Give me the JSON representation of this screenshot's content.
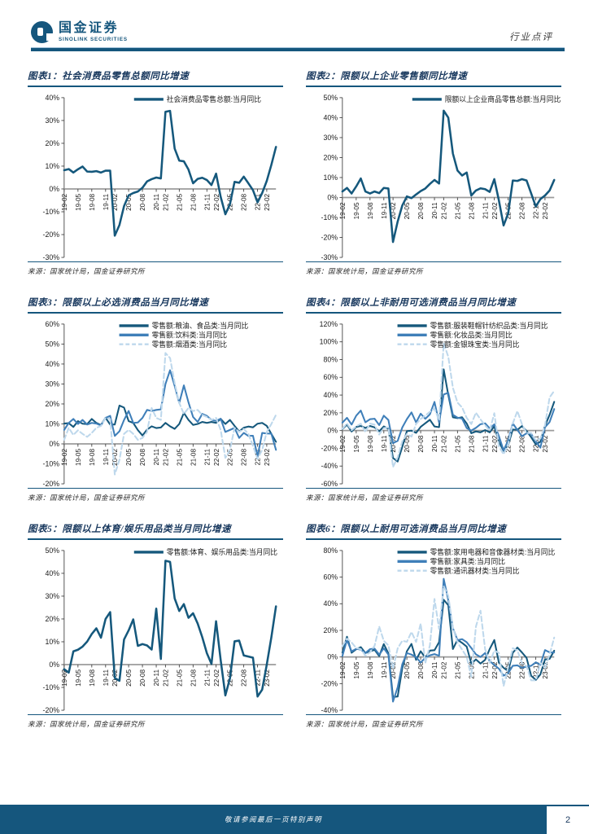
{
  "header": {
    "brand_cn": "国金证券",
    "brand_en": "SINOLINK SECURITIES",
    "doc_type": "行业点评"
  },
  "footer": {
    "disclaimer": "敬请参阅最后一页特别声明",
    "page_number": "2"
  },
  "colors": {
    "dark": "#15587c",
    "medium": "#3f7fb9",
    "light": "#bed8ec",
    "axis": "#404040",
    "zero": "#9b9b9b",
    "accent": "#15567d"
  },
  "x_tick_labels": [
    "19-02",
    "19-05",
    "19-08",
    "19-11",
    "20-02",
    "20-05",
    "20-08",
    "20-11",
    "21-02",
    "21-05",
    "21-08",
    "21-11",
    "22-02",
    "22-05",
    "22-08",
    "22-11",
    "23-02"
  ],
  "months": [
    "19-02",
    "19-03",
    "19-04",
    "19-05",
    "19-06",
    "19-07",
    "19-08",
    "19-09",
    "19-10",
    "19-11",
    "19-12",
    "20-02",
    "20-03",
    "20-04",
    "20-05",
    "20-06",
    "20-07",
    "20-08",
    "20-09",
    "20-10",
    "20-11",
    "20-12",
    "21-02",
    "21-03",
    "21-04",
    "21-05",
    "21-06",
    "21-07",
    "21-08",
    "21-09",
    "21-10",
    "21-11",
    "21-12",
    "22-02",
    "22-03",
    "22-04",
    "22-05",
    "22-06",
    "22-07",
    "22-08",
    "22-09",
    "22-10",
    "22-11",
    "22-12",
    "23-02",
    "23-03",
    "23-04"
  ],
  "charts": [
    {
      "title": "图表1：社会消费品零售总额同比增速",
      "source": "来源：国家统计局，国金证券研究所",
      "chart_data": {
        "type": "line",
        "ylim": [
          -30,
          40
        ],
        "ystep": 10,
        "grid": false,
        "legend_position": "top-center",
        "series": [
          {
            "name": "社会消费品零售总额:当月同比",
            "color": "dark",
            "dash": false,
            "values": [
              8.2,
              8.7,
              7.2,
              8.6,
              9.8,
              7.6,
              7.5,
              7.8,
              7.2,
              8.0,
              8.0,
              -20.5,
              -15.8,
              -7.5,
              -2.8,
              -1.8,
              -1.1,
              0.5,
              3.3,
              4.3,
              5.0,
              4.6,
              33.8,
              34.2,
              17.7,
              12.4,
              12.1,
              8.5,
              2.5,
              4.4,
              4.9,
              3.9,
              1.7,
              6.7,
              -3.5,
              -11.1,
              -6.7,
              3.1,
              2.7,
              5.4,
              2.5,
              -0.5,
              -5.9,
              -1.8,
              3.5,
              10.6,
              18.4
            ]
          }
        ]
      }
    },
    {
      "title": "图表2：限额以上企业零售额同比增速",
      "source": "来源：国家统计局，国金证券研究所",
      "chart_data": {
        "type": "line",
        "ylim": [
          -30,
          50
        ],
        "ystep": 10,
        "grid": false,
        "legend_position": "top-center",
        "series": [
          {
            "name": "限额以上企业商品零售总额:当月同比",
            "color": "dark",
            "dash": false,
            "values": [
              3.0,
              4.8,
              2.0,
              5.5,
              9.5,
              3.0,
              2.0,
              3.0,
              2.2,
              4.8,
              4.5,
              -22.3,
              -12.0,
              -4.0,
              0.5,
              -0.3,
              1.5,
              3.2,
              4.5,
              6.8,
              8.8,
              7.0,
              43.5,
              40.0,
              22.0,
              13.5,
              11.0,
              12.5,
              1.0,
              3.5,
              4.6,
              4.2,
              2.8,
              9.2,
              -1.5,
              -14.0,
              -8.0,
              8.5,
              8.3,
              9.2,
              8.5,
              2.0,
              -4.5,
              -0.8,
              1.0,
              3.5,
              8.8
            ]
          }
        ]
      }
    },
    {
      "title": "图表3：限额以上必选消费品当月同比增速",
      "source": "来源：国家统计局，国金证券研究所",
      "chart_data": {
        "type": "line",
        "ylim": [
          -20,
          60
        ],
        "ystep": 10,
        "grid": false,
        "legend_position": "top-center",
        "series": [
          {
            "name": "零售额:粮油、食品类:当月同比",
            "color": "dark",
            "dash": false,
            "values": [
              10.2,
              10.4,
              8.5,
              11.4,
              10.1,
              9.9,
              12.5,
              10.5,
              9.4,
              13.1,
              9.7,
              9.7,
              19.2,
              18.2,
              11.4,
              10.5,
              6.9,
              4.2,
              7.1,
              8.8,
              7.9,
              8.2,
              10.5,
              8.8,
              7.5,
              10.0,
              15.5,
              12.0,
              9.5,
              10.0,
              11.0,
              10.5,
              11.0,
              10.5,
              12.5,
              10.0,
              12.0,
              9.0,
              6.2,
              8.1,
              8.7,
              8.3,
              10.1,
              10.5,
              9.0,
              5.0,
              1.0
            ]
          },
          {
            "name": "零售额:饮料类:当月同比",
            "color": "medium",
            "dash": false,
            "values": [
              7.0,
              10.5,
              12.5,
              10.0,
              12.0,
              9.7,
              10.5,
              10.2,
              9.2,
              13.0,
              14.0,
              4.0,
              6.3,
              12.0,
              16.5,
              10.5,
              10.7,
              13.0,
              17.0,
              16.5,
              17.0,
              17.3,
              30.0,
              36.9,
              29.0,
              20.5,
              29.3,
              20.8,
              13.5,
              11.0,
              15.0,
              14.0,
              12.0,
              11.5,
              12.6,
              6.0,
              7.0,
              8.0,
              3.0,
              5.5,
              4.0,
              4.1,
              -6.2,
              5.5,
              5.2,
              5.1,
              -3.0
            ]
          },
          {
            "name": "零售额:烟酒类:当月同比",
            "color": "light",
            "dash": true,
            "values": [
              2.0,
              8.0,
              4.5,
              6.8,
              5.0,
              3.5,
              5.5,
              8.0,
              9.0,
              13.0,
              12.5,
              -15.3,
              -8.0,
              5.0,
              7.0,
              5.0,
              2.0,
              3.0,
              6.0,
              18.0,
              13.0,
              12.0,
              45.5,
              43.0,
              30.5,
              20.5,
              15.0,
              18.0,
              16.5,
              17.0,
              14.5,
              13.5,
              12.0,
              13.0,
              7.0,
              -7.0,
              -3.0,
              8.0,
              6.0,
              7.5,
              5.0,
              -1.0,
              -7.5,
              -3.0,
              6.0,
              10.0,
              14.5
            ]
          }
        ]
      }
    },
    {
      "title": "图表4：限额以上非耐用可选消费品当月同比增速",
      "source": "来源：国家统计局，国金证券研究所",
      "chart_data": {
        "type": "line",
        "ylim": [
          -60,
          120
        ],
        "ystep": 20,
        "grid": false,
        "legend_position": "top-center",
        "series": [
          {
            "name": "零售额:服装鞋帽针纺织品类:当月同比",
            "color": "dark",
            "dash": false,
            "values": [
              1.8,
              6.6,
              -1.1,
              4.1,
              5.2,
              2.9,
              5.2,
              3.6,
              -0.8,
              4.6,
              1.9,
              -30.9,
              -34.8,
              -18.5,
              -0.6,
              -0.1,
              -2.5,
              4.2,
              8.3,
              12.2,
              4.6,
              3.8,
              69.0,
              40.0,
              15.0,
              14.0,
              15.0,
              8.0,
              -3.0,
              -1.0,
              -2.0,
              0.5,
              -2.0,
              4.8,
              -12.7,
              -22.8,
              -16.2,
              1.2,
              0.8,
              5.1,
              -0.5,
              -7.5,
              -15.6,
              -12.5,
              5.4,
              17.7,
              32.4
            ]
          },
          {
            "name": "零售额:化妆品类:当月同比",
            "color": "medium",
            "dash": false,
            "values": [
              8.9,
              14.4,
              6.7,
              16.7,
              22.5,
              9.4,
              12.8,
              13.4,
              6.2,
              16.8,
              11.9,
              -14.1,
              -11.6,
              3.5,
              12.9,
              20.5,
              9.2,
              19.0,
              13.3,
              18.3,
              32.3,
              9.0,
              40.7,
              42.5,
              17.8,
              14.6,
              13.5,
              2.8,
              0.0,
              3.1,
              7.2,
              8.2,
              2.5,
              7.0,
              -6.3,
              -22.3,
              -11.0,
              8.1,
              0.7,
              -6.4,
              -3.1,
              -3.7,
              -12.0,
              -19.3,
              3.8,
              9.6,
              24.3
            ]
          },
          {
            "name": "零售额:金银珠宝类:当月同比",
            "color": "light",
            "dash": true,
            "values": [
              2.1,
              8.0,
              0.4,
              4.7,
              7.7,
              -1.6,
              7.9,
              6.6,
              -4.5,
              2.8,
              3.7,
              -41.1,
              -30.1,
              -12.1,
              -3.9,
              -6.8,
              7.5,
              13.1,
              16.7,
              21.2,
              24.8,
              11.6,
              98.2,
              83.2,
              48.3,
              31.5,
              26.0,
              14.3,
              7.4,
              20.1,
              12.6,
              5.9,
              -0.2,
              19.5,
              -17.9,
              -26.7,
              -15.5,
              8.1,
              22.0,
              7.2,
              -2.7,
              -2.7,
              -11.0,
              -9.0,
              5.9,
              37.4,
              44.7
            ]
          }
        ]
      }
    },
    {
      "title": "图表5：限额以上体育/娱乐用品类当月同比增速",
      "source": "来源：国家统计局，国金证券研究所",
      "chart_data": {
        "type": "line",
        "ylim": [
          -20,
          50
        ],
        "ystep": 10,
        "grid": false,
        "legend_position": "top-center",
        "series": [
          {
            "name": "零售额:体育、娱乐用品类:当月同比",
            "color": "dark",
            "dash": false,
            "values": [
              -2.0,
              -3.5,
              5.8,
              6.5,
              7.9,
              10.1,
              13.4,
              15.9,
              11.8,
              20.0,
              23.0,
              -5.9,
              -7.1,
              11.0,
              15.0,
              19.8,
              8.2,
              9.0,
              8.4,
              6.6,
              24.5,
              2.5,
              45.5,
              45.0,
              29.0,
              23.5,
              26.5,
              20.5,
              22.5,
              18.0,
              12.0,
              5.0,
              0.3,
              19.0,
              2.0,
              -13.5,
              -6.0,
              10.2,
              10.5,
              4.0,
              3.5,
              3.0,
              -14.0,
              -11.0,
              0.0,
              12.0,
              25.5
            ]
          }
        ]
      }
    },
    {
      "title": "图表6：限额以上耐用可选消费品当月同比增速",
      "source": "来源：国家统计局，国金证券研究所",
      "chart_data": {
        "type": "line",
        "ylim": [
          -40,
          80
        ],
        "ystep": 20,
        "grid": false,
        "legend_position": "top-center",
        "series": [
          {
            "name": "零售额:家用电器和音像器材类:当月同比",
            "color": "dark",
            "dash": false,
            "values": [
              3.3,
              15.2,
              3.2,
              5.8,
              7.4,
              3.0,
              4.2,
              5.4,
              0.7,
              9.7,
              2.7,
              -30.0,
              -29.7,
              -8.5,
              4.3,
              9.8,
              -2.2,
              4.3,
              -0.5,
              4.8,
              5.1,
              11.2,
              43.0,
              38.9,
              6.0,
              12.9,
              10.6,
              7.8,
              -5.0,
              -1.8,
              -4.9,
              -2.2,
              6.0,
              12.7,
              -4.3,
              -8.1,
              -10.6,
              3.2,
              7.1,
              3.4,
              -0.7,
              -14.1,
              -17.3,
              -13.1,
              -1.9,
              -1.4,
              4.7
            ]
          },
          {
            "name": "零售额:家具类:当月同比",
            "color": "medium",
            "dash": false,
            "values": [
              0.7,
              12.8,
              4.2,
              6.1,
              5.6,
              3.0,
              5.9,
              6.3,
              1.8,
              6.5,
              1.8,
              -33.5,
              -22.7,
              -5.4,
              3.0,
              1.8,
              -0.1,
              -4.2,
              -0.6,
              1.3,
              2.2,
              0.9,
              58.7,
              42.8,
              21.7,
              12.6,
              13.4,
              11.1,
              6.7,
              2.0,
              0.0,
              3.0,
              -3.1,
              -6.0,
              -8.8,
              -14.0,
              -12.2,
              -6.6,
              -6.3,
              -8.1,
              -7.3,
              -6.6,
              -4.0,
              -5.8,
              5.2,
              3.5,
              3.4
            ]
          },
          {
            "name": "零售额:通讯器材类:当月同比",
            "color": "light",
            "dash": true,
            "values": [
              8.2,
              13.8,
              10.9,
              6.7,
              5.9,
              1.0,
              3.5,
              8.4,
              22.9,
              12.1,
              8.8,
              -8.8,
              6.5,
              12.2,
              11.4,
              18.8,
              11.3,
              25.1,
              -4.6,
              8.7,
              43.6,
              21.0,
              53.1,
              46.0,
              21.8,
              10.9,
              5.5,
              0.1,
              -14.9,
              22.8,
              34.8,
              5.9,
              -4.4,
              4.8,
              3.1,
              -21.8,
              -7.7,
              6.6,
              4.9,
              -4.6,
              -7.1,
              -17.6,
              -17.6,
              -4.5,
              -8.2,
              1.8,
              14.6
            ]
          }
        ]
      }
    }
  ]
}
